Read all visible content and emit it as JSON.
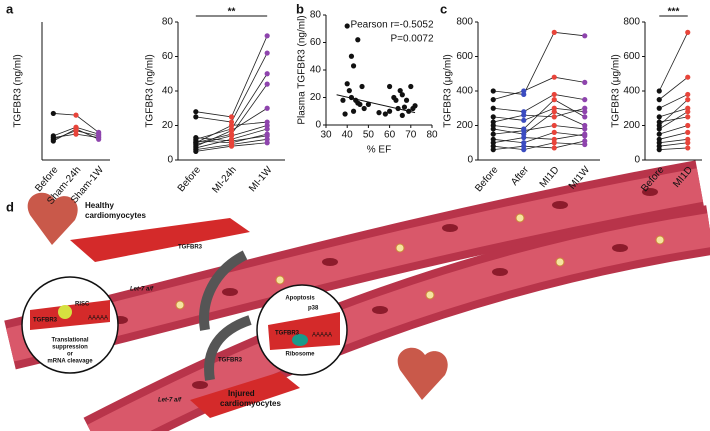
{
  "panels": [
    "a",
    "b",
    "c",
    "d"
  ],
  "chart_data": [
    {
      "type": "line",
      "ylabel": "TGFBR3 (ng/ml)",
      "categories": [
        "Before",
        "Sham-24h",
        "Sham-1W"
      ],
      "ylim": [
        0,
        80
      ],
      "point_colors": [
        "#111111",
        "#e8443a",
        "#8e44ad"
      ],
      "line_color": "#222222",
      "series": [
        {
          "values": [
            27,
            26,
            16
          ]
        },
        {
          "values": [
            12,
            17,
            14
          ]
        },
        {
          "values": [
            13,
            15,
            13
          ]
        },
        {
          "values": [
            11,
            18,
            12
          ]
        },
        {
          "values": [
            14,
            19,
            15
          ]
        }
      ]
    },
    {
      "type": "line",
      "ylabel": "TGFBR3 (ng/ml)",
      "categories": [
        "Before",
        "MI-24h",
        "MI-1W"
      ],
      "ylim": [
        0,
        80
      ],
      "yticks": [
        0,
        20,
        40,
        60,
        80
      ],
      "significance": "**",
      "point_colors": [
        "#111111",
        "#e8443a",
        "#8e44ad"
      ],
      "line_color": "#222222",
      "series": [
        {
          "values": [
            28,
            25,
            72
          ]
        },
        {
          "values": [
            25,
            22,
            62
          ]
        },
        {
          "values": [
            12,
            18,
            50
          ]
        },
        {
          "values": [
            10,
            15,
            44
          ]
        },
        {
          "values": [
            8,
            17,
            30
          ]
        },
        {
          "values": [
            9,
            14,
            20
          ]
        },
        {
          "values": [
            7,
            12,
            18
          ]
        },
        {
          "values": [
            11,
            10,
            15
          ]
        },
        {
          "values": [
            6,
            9,
            12
          ]
        },
        {
          "values": [
            10,
            20,
            22
          ]
        },
        {
          "values": [
            5,
            8,
            10
          ]
        },
        {
          "values": [
            13,
            11,
            14
          ]
        }
      ]
    },
    {
      "type": "scatter",
      "ylabel": "Plasma TGFBR3 (ng/ml)",
      "xlabel": "% EF",
      "annotations": [
        "Pearson r=-0.5052",
        "P=0.0072"
      ],
      "xlim": [
        30,
        80
      ],
      "xticks": [
        30,
        40,
        50,
        60,
        70,
        80
      ],
      "ylim": [
        0,
        80
      ],
      "yticks": [
        0,
        20,
        40,
        60,
        80
      ],
      "color": "#111111",
      "x": [
        40,
        42,
        43,
        45,
        40,
        41,
        42,
        38,
        44,
        45,
        46,
        47,
        50,
        48,
        43,
        39,
        60,
        62,
        63,
        65,
        66,
        68,
        70,
        67,
        64,
        60,
        58,
        69,
        71,
        55,
        66,
        72
      ],
      "y": [
        72,
        50,
        43,
        62,
        30,
        25,
        20,
        18,
        18,
        16,
        15,
        28,
        15,
        12,
        10,
        8,
        28,
        20,
        18,
        25,
        22,
        18,
        28,
        13,
        12,
        10,
        8,
        10,
        12,
        9,
        7,
        14
      ],
      "trend_line": {
        "x": [
          35,
          72
        ],
        "y": [
          22,
          9
        ]
      }
    },
    {
      "type": "line",
      "ylabel": "TGFBR3 (μg/ml)",
      "categories": [
        "Before",
        "After",
        "MI1D",
        "MI1W"
      ],
      "ylim": [
        0,
        800
      ],
      "yticks": [
        0,
        200,
        400,
        600,
        800
      ],
      "point_colors": [
        "#111111",
        "#3b4cc0",
        "#e8443a",
        "#8e44ad"
      ],
      "line_color": "#222222",
      "series": [
        {
          "values": [
            400,
            380,
            740,
            720
          ]
        },
        {
          "values": [
            350,
            400,
            480,
            450
          ]
        },
        {
          "values": [
            300,
            280,
            380,
            350
          ]
        },
        {
          "values": [
            250,
            230,
            300,
            280
          ]
        },
        {
          "values": [
            220,
            260,
            250,
            300
          ]
        },
        {
          "values": [
            180,
            150,
            280,
            200
          ]
        },
        {
          "values": [
            150,
            170,
            200,
            180
          ]
        },
        {
          "values": [
            120,
            100,
            160,
            140
          ]
        },
        {
          "values": [
            100,
            130,
            120,
            150
          ]
        },
        {
          "values": [
            80,
            60,
            100,
            90
          ]
        },
        {
          "values": [
            60,
            80,
            70,
            110
          ]
        },
        {
          "values": [
            200,
            180,
            350,
            250
          ]
        }
      ]
    },
    {
      "type": "line",
      "ylabel": "TGFBR3 (μg/ml)",
      "categories": [
        "Before",
        "MI1D"
      ],
      "ylim": [
        0,
        800
      ],
      "yticks": [
        0,
        200,
        400,
        600,
        800
      ],
      "significance": "***",
      "point_colors": [
        "#111111",
        "#e8443a"
      ],
      "line_color": "#222222",
      "series": [
        {
          "values": [
            400,
            740
          ]
        },
        {
          "values": [
            350,
            480
          ]
        },
        {
          "values": [
            300,
            380
          ]
        },
        {
          "values": [
            250,
            300
          ]
        },
        {
          "values": [
            220,
            250
          ]
        },
        {
          "values": [
            180,
            280
          ]
        },
        {
          "values": [
            150,
            200
          ]
        },
        {
          "values": [
            120,
            160
          ]
        },
        {
          "values": [
            100,
            120
          ]
        },
        {
          "values": [
            80,
            100
          ]
        },
        {
          "values": [
            60,
            70
          ]
        },
        {
          "values": [
            200,
            350
          ]
        }
      ]
    }
  ],
  "diagram": {
    "healthy": [
      "Healthy",
      "cardiomyocytes"
    ],
    "injured": [
      "Injured",
      "cardiomyocytes"
    ],
    "tgfbr3_top": "TGFBR3",
    "tgfbr3_bottom": "TGFBR3",
    "let7_top": "Let-7 a/f",
    "let7_bottom": "Let-7 a/f",
    "left_inset": {
      "risc": "RISC",
      "gene": "TGFBR3",
      "polya": "AAAAA",
      "outcome": [
        "Translational",
        "suppression",
        "or",
        "mRNA cleavage"
      ]
    },
    "right_inset": {
      "apoptosis": "Apoptosis",
      "kinase": "p38",
      "gene": "TGFBR3",
      "polya": "AAAAA",
      "ribosome": "Ribosome"
    }
  }
}
